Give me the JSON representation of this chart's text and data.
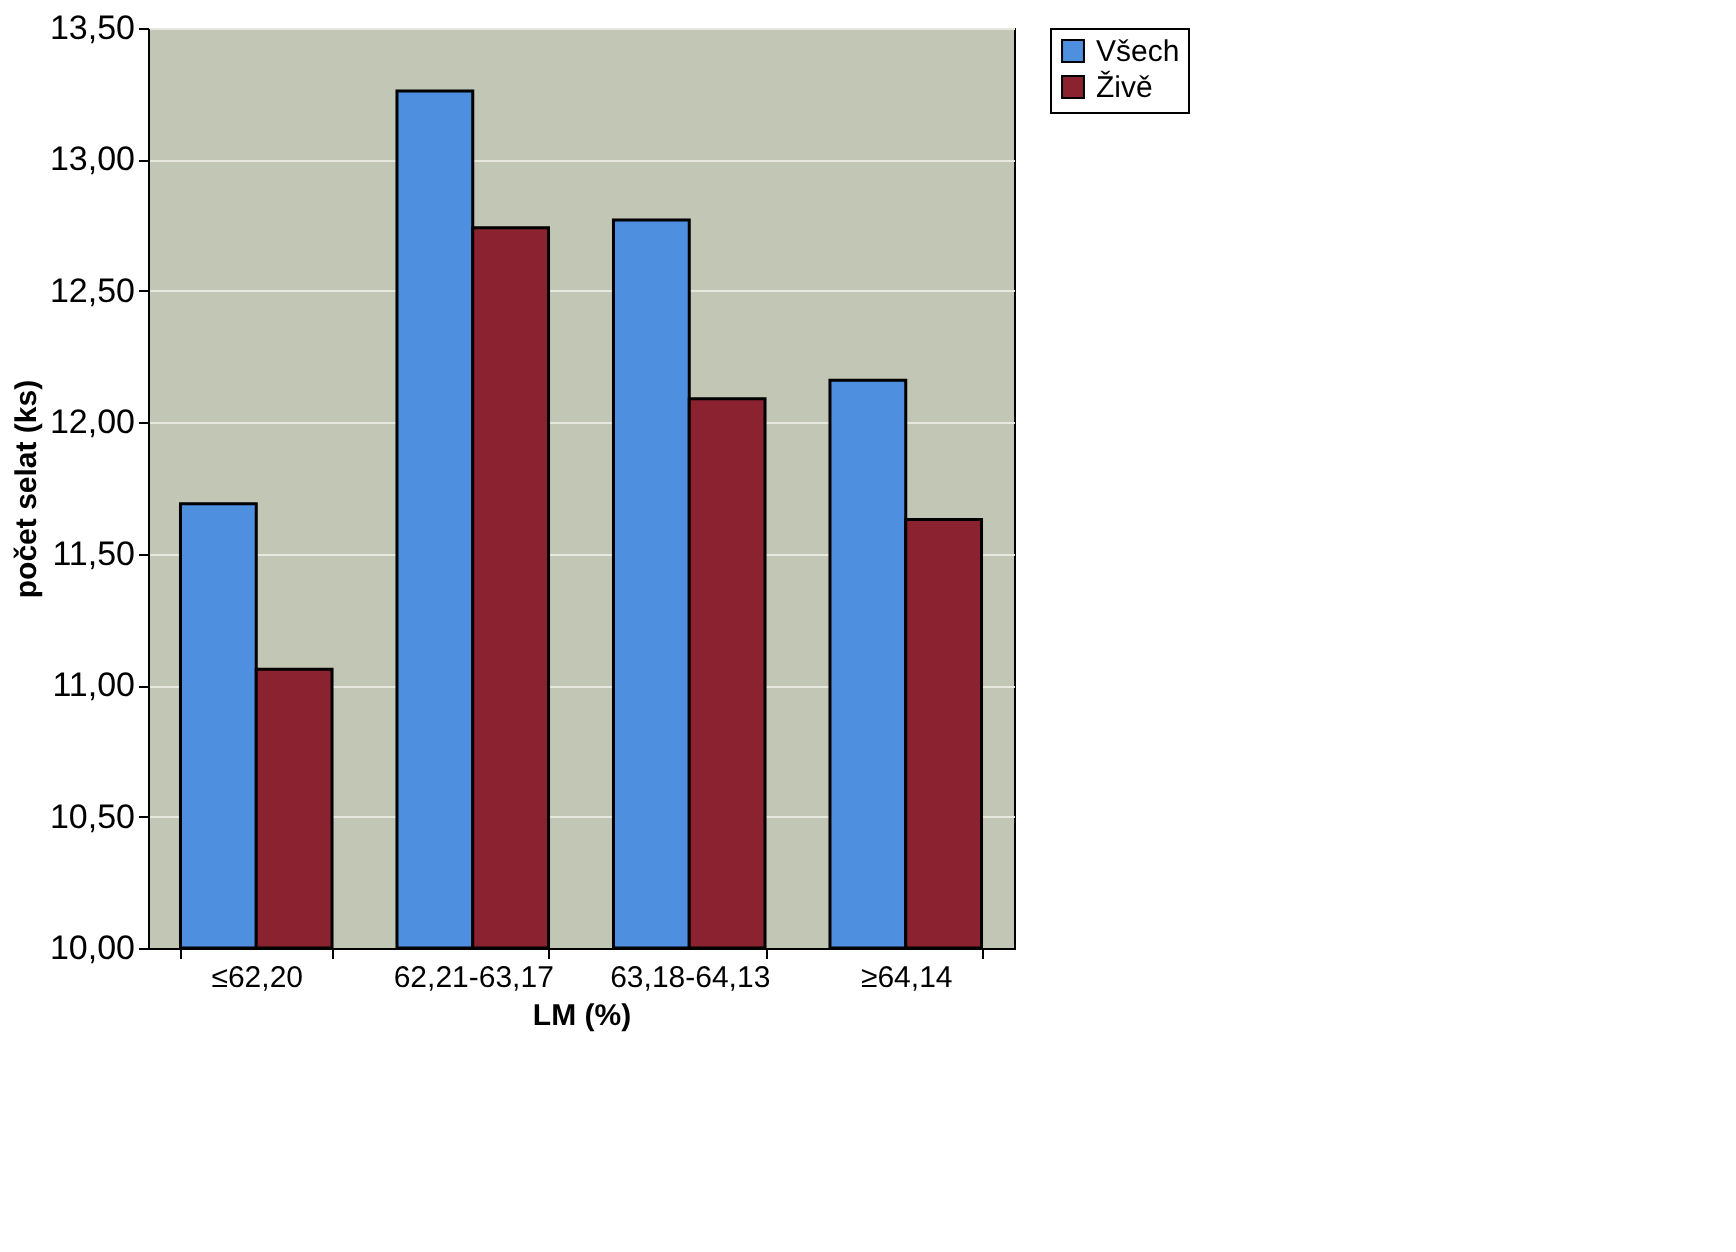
{
  "chart_data": {
    "type": "bar",
    "xlabel": "LM (%)",
    "ylabel": "počet selat (ks)",
    "categories": [
      "≤62,20",
      "62,21-63,17",
      "63,18-64,13",
      "≥64,14"
    ],
    "series": [
      {
        "name": "Všech",
        "color": "#4f8fe0",
        "values": [
          11.69,
          13.26,
          12.77,
          12.16
        ]
      },
      {
        "name": "Živě",
        "color": "#8b2230",
        "values": [
          11.06,
          12.74,
          12.09,
          11.63
        ]
      }
    ],
    "ylim": [
      10,
      13.5
    ],
    "yticks": [
      {
        "value": 10,
        "label": "10,00"
      },
      {
        "value": 10.5,
        "label": "10,50"
      },
      {
        "value": 11,
        "label": "11,00"
      },
      {
        "value": 11.5,
        "label": "11,50"
      },
      {
        "value": 12,
        "label": "12,00"
      },
      {
        "value": 12.5,
        "label": "12,50"
      },
      {
        "value": 13,
        "label": "13,00"
      },
      {
        "value": 13.5,
        "label": "13,50"
      }
    ],
    "grid": "y",
    "legend": "right"
  }
}
